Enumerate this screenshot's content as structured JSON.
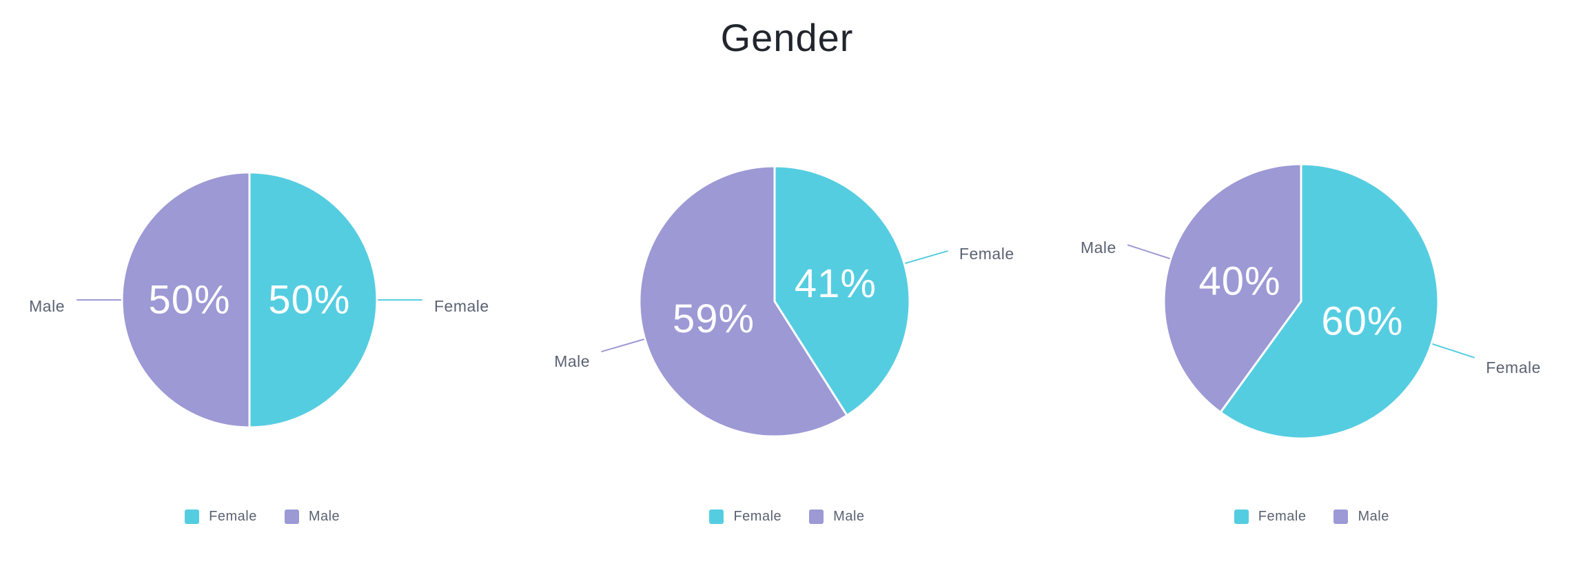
{
  "title": "Gender",
  "colors": {
    "female": "#55CDE1",
    "male": "#9C99D5",
    "percent_label": "#FFFFFF",
    "outer_label_text": "#5A6272",
    "title_text": "#21252D",
    "background": "#FFFFFF"
  },
  "legend": {
    "position": "bottom",
    "items": [
      {
        "label": "Female",
        "color_key": "female"
      },
      {
        "label": "Male",
        "color_key": "male"
      }
    ]
  },
  "chart_data": [
    {
      "type": "pie",
      "title": "Gender",
      "start_angle": "12-oclock",
      "direction": "clockwise",
      "legend_position": "bottom",
      "slices": [
        {
          "label": "Female",
          "value": 50,
          "display": "50%",
          "color_key": "female"
        },
        {
          "label": "Male",
          "value": 50,
          "display": "50%",
          "color_key": "male"
        }
      ]
    },
    {
      "type": "pie",
      "title": "Gender",
      "start_angle": "12-oclock",
      "direction": "clockwise",
      "legend_position": "bottom",
      "slices": [
        {
          "label": "Female",
          "value": 41,
          "display": "41%",
          "color_key": "female"
        },
        {
          "label": "Male",
          "value": 59,
          "display": "59%",
          "color_key": "male"
        }
      ]
    },
    {
      "type": "pie",
      "title": "Gender",
      "start_angle": "12-oclock",
      "direction": "clockwise",
      "legend_position": "bottom",
      "slices": [
        {
          "label": "Female",
          "value": 60,
          "display": "60%",
          "color_key": "female"
        },
        {
          "label": "Male",
          "value": 40,
          "display": "40%",
          "color_key": "male"
        }
      ]
    }
  ]
}
